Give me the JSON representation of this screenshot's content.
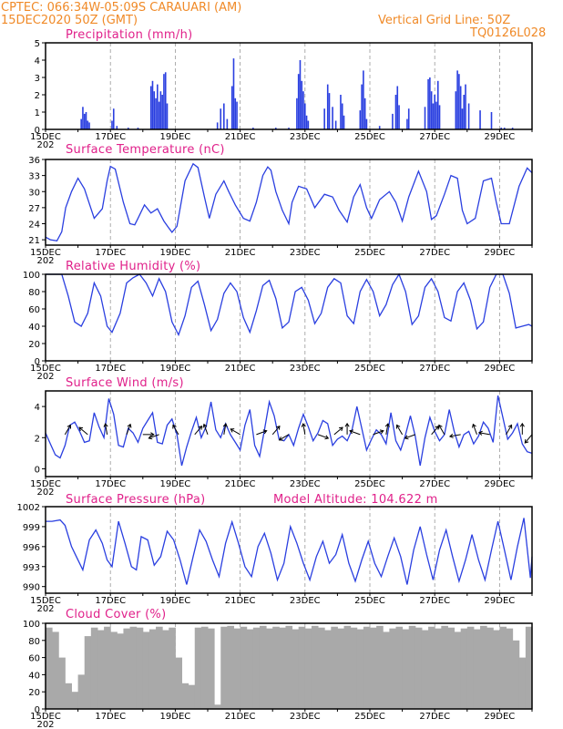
{
  "header": {
    "line1": "CPTEC:   066:34W-05:09S   CARAUARI (AM)",
    "line2": "15DEC2020 50Z (GMT)",
    "grid_note": "Vertical Grid Line: 50Z",
    "code": "TQ0126L028"
  },
  "colors": {
    "header": "#f08a28",
    "panel_title": "#e0208a",
    "series": "#2a3fe0",
    "arrow": "#000000",
    "cloud": "#a9a9a9"
  },
  "x_axis": {
    "labels": [
      "15DEC",
      "17DEC",
      "19DEC",
      "21DEC",
      "23DEC",
      "25DEC",
      "27DEC",
      "29DEC"
    ],
    "year_fragment": "202",
    "day_range": [
      0,
      15
    ],
    "grid_days": [
      2,
      4,
      6,
      8,
      10,
      12,
      14
    ]
  },
  "chart_data": [
    {
      "type": "bar",
      "title": "Precipitation (mm/h)",
      "ylim": [
        0,
        5
      ],
      "yticks": [
        "0",
        "1",
        "2",
        "3",
        "4",
        "5"
      ],
      "x_unit": "days since 15DEC",
      "bars": [
        [
          1.1,
          0.6
        ],
        [
          1.15,
          1.3
        ],
        [
          1.2,
          0.9
        ],
        [
          1.25,
          1.0
        ],
        [
          1.3,
          0.5
        ],
        [
          1.35,
          0.4
        ],
        [
          2.05,
          0.5
        ],
        [
          2.1,
          1.2
        ],
        [
          2.2,
          0.2
        ],
        [
          2.55,
          0.1
        ],
        [
          2.85,
          0.1
        ],
        [
          3.25,
          2.5
        ],
        [
          3.3,
          2.8
        ],
        [
          3.35,
          2.2
        ],
        [
          3.4,
          1.8
        ],
        [
          3.45,
          2.6
        ],
        [
          3.5,
          1.6
        ],
        [
          3.55,
          2.2
        ],
        [
          3.6,
          2.0
        ],
        [
          3.65,
          3.2
        ],
        [
          3.7,
          3.3
        ],
        [
          3.75,
          1.5
        ],
        [
          5.3,
          0.4
        ],
        [
          5.4,
          1.2
        ],
        [
          5.5,
          1.5
        ],
        [
          5.6,
          0.6
        ],
        [
          5.75,
          2.5
        ],
        [
          5.8,
          4.1
        ],
        [
          5.85,
          1.8
        ],
        [
          5.9,
          1.6
        ],
        [
          6.4,
          0.1
        ],
        [
          7.1,
          0.1
        ],
        [
          7.5,
          0.1
        ],
        [
          7.75,
          1.8
        ],
        [
          7.8,
          3.2
        ],
        [
          7.85,
          4.0
        ],
        [
          7.9,
          2.8
        ],
        [
          7.95,
          2.2
        ],
        [
          8.0,
          1.5
        ],
        [
          8.05,
          0.8
        ],
        [
          8.1,
          0.5
        ],
        [
          8.6,
          1.2
        ],
        [
          8.7,
          2.6
        ],
        [
          8.75,
          2.1
        ],
        [
          8.85,
          1.3
        ],
        [
          8.95,
          0.5
        ],
        [
          9.1,
          2.0
        ],
        [
          9.15,
          1.5
        ],
        [
          9.2,
          0.8
        ],
        [
          9.7,
          1.1
        ],
        [
          9.75,
          2.6
        ],
        [
          9.8,
          3.4
        ],
        [
          9.85,
          1.8
        ],
        [
          9.9,
          0.6
        ],
        [
          10.3,
          0.2
        ],
        [
          10.7,
          0.9
        ],
        [
          10.8,
          2.0
        ],
        [
          10.85,
          2.5
        ],
        [
          10.9,
          1.4
        ],
        [
          11.15,
          0.6
        ],
        [
          11.2,
          1.2
        ],
        [
          11.7,
          1.3
        ],
        [
          11.8,
          2.9
        ],
        [
          11.85,
          3.0
        ],
        [
          11.9,
          2.2
        ],
        [
          11.95,
          1.5
        ],
        [
          12.0,
          2.0
        ],
        [
          12.05,
          1.6
        ],
        [
          12.1,
          2.8
        ],
        [
          12.15,
          1.4
        ],
        [
          12.65,
          2.2
        ],
        [
          12.7,
          3.4
        ],
        [
          12.75,
          3.2
        ],
        [
          12.8,
          2.5
        ],
        [
          12.85,
          1.2
        ],
        [
          12.9,
          2.0
        ],
        [
          12.95,
          2.6
        ],
        [
          13.05,
          1.5
        ],
        [
          13.4,
          1.1
        ],
        [
          13.75,
          1.0
        ],
        [
          14.05,
          0.1
        ],
        [
          14.15,
          0.1
        ],
        [
          14.4,
          0.1
        ]
      ]
    },
    {
      "type": "line",
      "title": "Surface Temperature (nC)",
      "ylim": [
        20,
        36
      ],
      "yticks": [
        "21",
        "24",
        "27",
        "30",
        "33",
        "36"
      ],
      "x_unit": "days since 15DEC",
      "x": [
        0,
        0.15,
        0.35,
        0.5,
        0.62,
        0.8,
        1.0,
        1.2,
        1.5,
        1.75,
        1.9,
        2.0,
        2.15,
        2.4,
        2.6,
        2.75,
        2.85,
        3.05,
        3.25,
        3.45,
        3.65,
        3.8,
        3.9,
        4.05,
        4.3,
        4.55,
        4.7,
        4.9,
        5.05,
        5.25,
        5.5,
        5.65,
        5.85,
        6.1,
        6.3,
        6.5,
        6.7,
        6.85,
        6.95,
        7.1,
        7.3,
        7.5,
        7.6,
        7.8,
        8.05,
        8.3,
        8.6,
        8.85,
        9.05,
        9.3,
        9.5,
        9.7,
        9.9,
        10.05,
        10.3,
        10.6,
        10.8,
        11.0,
        11.2,
        11.5,
        11.75,
        11.9,
        12.05,
        12.3,
        12.5,
        12.7,
        12.85,
        13.0,
        13.25,
        13.5,
        13.75,
        13.9,
        14.05,
        14.3,
        14.6,
        14.85,
        15.0
      ],
      "values": [
        21.5,
        21.0,
        20.8,
        22.5,
        27.0,
        30.0,
        32.5,
        30.5,
        25.0,
        26.8,
        32.0,
        34.7,
        34.2,
        28.0,
        24.0,
        23.8,
        25.0,
        27.5,
        26.0,
        26.8,
        24.5,
        23.2,
        22.4,
        23.5,
        32.0,
        35.2,
        34.5,
        29.0,
        25.0,
        29.5,
        32.0,
        30.0,
        27.5,
        25.0,
        24.5,
        28.0,
        33.0,
        34.6,
        34.0,
        30.0,
        26.5,
        24.0,
        28.0,
        31.0,
        30.5,
        27.0,
        29.5,
        29.0,
        26.5,
        24.3,
        29.0,
        31.3,
        27.0,
        25.0,
        28.5,
        30.0,
        28.0,
        24.5,
        29.0,
        33.8,
        30.0,
        24.8,
        25.5,
        29.5,
        33.0,
        32.5,
        26.5,
        24.0,
        25.0,
        32.0,
        32.5,
        28.0,
        24.0,
        24.0,
        31.0,
        34.4,
        33.5
      ]
    },
    {
      "type": "line",
      "title": "Relative Humidity (%)",
      "ylim": [
        0,
        100
      ],
      "yticks": [
        "0",
        "20",
        "40",
        "60",
        "80",
        "100"
      ],
      "x_unit": "days since 15DEC",
      "x": [
        0,
        0.2,
        0.5,
        0.7,
        0.9,
        1.1,
        1.3,
        1.5,
        1.7,
        1.9,
        2.05,
        2.3,
        2.5,
        2.7,
        2.9,
        3.1,
        3.3,
        3.5,
        3.7,
        3.9,
        4.1,
        4.3,
        4.5,
        4.7,
        4.9,
        5.1,
        5.3,
        5.5,
        5.7,
        5.9,
        6.1,
        6.3,
        6.5,
        6.7,
        6.9,
        7.1,
        7.3,
        7.5,
        7.7,
        7.9,
        8.1,
        8.3,
        8.5,
        8.7,
        8.9,
        9.1,
        9.3,
        9.5,
        9.7,
        9.9,
        10.1,
        10.3,
        10.5,
        10.7,
        10.9,
        11.1,
        11.3,
        11.5,
        11.7,
        11.9,
        12.1,
        12.3,
        12.5,
        12.7,
        12.9,
        13.1,
        13.3,
        13.5,
        13.7,
        13.9,
        14.1,
        14.3,
        14.5,
        14.7,
        14.9,
        15.0
      ],
      "values": [
        100,
        100,
        100,
        75,
        45,
        40,
        55,
        90,
        75,
        40,
        33,
        55,
        90,
        96,
        100,
        90,
        75,
        95,
        80,
        45,
        30,
        52,
        85,
        92,
        65,
        35,
        48,
        78,
        90,
        80,
        50,
        33,
        58,
        87,
        93,
        72,
        38,
        45,
        80,
        85,
        70,
        43,
        55,
        85,
        95,
        90,
        52,
        43,
        80,
        94,
        80,
        52,
        65,
        88,
        100,
        80,
        42,
        52,
        85,
        95,
        80,
        50,
        46,
        80,
        90,
        70,
        37,
        45,
        85,
        100,
        100,
        78,
        38,
        40,
        42,
        40
      ]
    },
    {
      "type": "line",
      "title": "Surface Wind (m/s)",
      "ylim": [
        -0.5,
        5
      ],
      "yticks": [
        "0",
        "2",
        "4"
      ],
      "x_unit": "days since 15DEC",
      "x": [
        0,
        0.15,
        0.3,
        0.45,
        0.6,
        0.75,
        0.9,
        1.05,
        1.2,
        1.35,
        1.5,
        1.65,
        1.8,
        1.95,
        2.1,
        2.25,
        2.4,
        2.55,
        2.7,
        2.85,
        3.0,
        3.15,
        3.3,
        3.45,
        3.6,
        3.75,
        3.9,
        4.05,
        4.2,
        4.35,
        4.5,
        4.65,
        4.8,
        4.95,
        5.1,
        5.25,
        5.4,
        5.55,
        5.7,
        5.85,
        6.0,
        6.15,
        6.3,
        6.45,
        6.6,
        6.75,
        6.9,
        7.05,
        7.2,
        7.35,
        7.5,
        7.65,
        7.8,
        7.95,
        8.1,
        8.25,
        8.4,
        8.55,
        8.7,
        8.85,
        9.0,
        9.15,
        9.3,
        9.45,
        9.6,
        9.75,
        9.9,
        10.05,
        10.2,
        10.35,
        10.5,
        10.65,
        10.8,
        10.95,
        11.1,
        11.25,
        11.4,
        11.55,
        11.7,
        11.85,
        12.0,
        12.15,
        12.3,
        12.45,
        12.6,
        12.75,
        12.9,
        13.05,
        13.2,
        13.35,
        13.5,
        13.65,
        13.8,
        13.95,
        14.1,
        14.25,
        14.4,
        14.55,
        14.7,
        14.85,
        15.0
      ],
      "values": [
        2.3,
        1.6,
        0.9,
        0.7,
        1.5,
        2.8,
        3.0,
        2.4,
        1.7,
        1.8,
        3.6,
        2.7,
        2.0,
        4.5,
        3.5,
        1.5,
        1.4,
        2.6,
        2.3,
        1.7,
        2.6,
        3.1,
        3.6,
        1.7,
        1.6,
        2.8,
        3.2,
        2.2,
        0.2,
        1.4,
        2.4,
        3.3,
        2.0,
        2.7,
        4.3,
        2.5,
        2.0,
        2.9,
        2.2,
        1.7,
        1.2,
        2.8,
        3.8,
        1.5,
        0.8,
        2.5,
        4.3,
        3.4,
        1.9,
        1.8,
        2.2,
        1.5,
        2.6,
        3.5,
        2.7,
        1.8,
        2.3,
        3.1,
        2.9,
        1.5,
        1.9,
        2.1,
        1.8,
        2.5,
        4.0,
        2.6,
        1.2,
        1.9,
        2.5,
        2.2,
        1.6,
        3.6,
        1.8,
        1.2,
        2.2,
        3.4,
        2.1,
        0.2,
        2.0,
        3.3,
        2.4,
        1.8,
        2.2,
        3.8,
        2.4,
        1.4,
        2.2,
        2.4,
        1.6,
        2.1,
        3.0,
        2.6,
        1.7,
        4.7,
        3.3,
        1.9,
        2.3,
        2.9,
        1.6,
        1.1,
        1.0
      ],
      "arrows_x": [
        0.6,
        1.3,
        1.9,
        2.5,
        3.0,
        3.5,
        4.1,
        4.6,
        5.0,
        5.5,
        6.0,
        6.5,
        7.0,
        7.5,
        8.0,
        8.4,
        8.9,
        9.3,
        9.7,
        10.1,
        10.5,
        11.0,
        11.4,
        11.9,
        12.3,
        12.8,
        13.3,
        13.7,
        14.2,
        14.7,
        15.0
      ],
      "arrows_angle_deg": [
        60,
        140,
        100,
        70,
        0,
        200,
        120,
        50,
        110,
        80,
        150,
        20,
        50,
        210,
        100,
        340,
        40,
        90,
        160,
        20,
        80,
        120,
        200,
        50,
        120,
        190,
        110,
        170,
        60,
        90,
        230
      ]
    },
    {
      "type": "line",
      "title": "Surface Pressure (hPa)",
      "annotation": "Model Altitude: 104.622  m",
      "ylim": [
        989,
        1002
      ],
      "yticks": [
        "990",
        "993",
        "996",
        "999",
        "1002"
      ],
      "x_unit": "days since 15DEC",
      "x": [
        0,
        0.2,
        0.45,
        0.6,
        0.8,
        0.95,
        1.15,
        1.35,
        1.55,
        1.75,
        1.9,
        2.05,
        2.25,
        2.45,
        2.65,
        2.8,
        2.95,
        3.15,
        3.35,
        3.55,
        3.75,
        3.95,
        4.15,
        4.35,
        4.55,
        4.75,
        4.95,
        5.15,
        5.35,
        5.55,
        5.75,
        5.95,
        6.15,
        6.35,
        6.55,
        6.75,
        6.95,
        7.15,
        7.35,
        7.55,
        7.75,
        7.95,
        8.15,
        8.35,
        8.55,
        8.75,
        8.95,
        9.15,
        9.35,
        9.55,
        9.75,
        9.95,
        10.15,
        10.35,
        10.55,
        10.75,
        10.95,
        11.15,
        11.35,
        11.55,
        11.75,
        11.95,
        12.15,
        12.35,
        12.55,
        12.75,
        12.95,
        13.15,
        13.35,
        13.55,
        13.75,
        13.95,
        14.15,
        14.35,
        14.55,
        14.75,
        14.95,
        15.0
      ],
      "values": [
        999.8,
        999.8,
        1000.0,
        999.2,
        996.0,
        994.5,
        992.5,
        997.0,
        998.5,
        996.5,
        994.0,
        993.0,
        999.8,
        996.5,
        993.0,
        992.5,
        997.5,
        997.0,
        993.2,
        994.5,
        998.3,
        997.0,
        994.0,
        990.3,
        994.5,
        998.5,
        996.8,
        994.0,
        991.5,
        996.5,
        999.7,
        996.5,
        993.0,
        991.5,
        996.0,
        998.0,
        995.0,
        991.0,
        993.5,
        999.0,
        996.5,
        993.5,
        991.0,
        994.5,
        996.8,
        993.5,
        994.8,
        997.8,
        993.5,
        990.8,
        994.0,
        996.8,
        993.5,
        991.5,
        994.5,
        997.3,
        994.5,
        990.3,
        995.5,
        999.0,
        994.8,
        991.0,
        995.5,
        998.5,
        994.5,
        990.8,
        994.0,
        997.8,
        994.0,
        991.0,
        995.5,
        999.8,
        995.5,
        991.0,
        996.0,
        1000.3,
        991.3,
        994.5
      ]
    },
    {
      "type": "bar",
      "title": "Cloud Cover (%)",
      "ylim": [
        0,
        100
      ],
      "yticks": [
        "0",
        "20",
        "40",
        "60",
        "80",
        "100"
      ],
      "x_unit": "days since 15DEC",
      "x": [
        0,
        0.2,
        0.4,
        0.6,
        0.8,
        1.0,
        1.2,
        1.4,
        1.6,
        1.8,
        2.0,
        2.2,
        2.4,
        2.6,
        2.8,
        3.0,
        3.2,
        3.4,
        3.6,
        3.8,
        4.0,
        4.2,
        4.4,
        4.6,
        4.8,
        5.0,
        5.2,
        5.4,
        5.6,
        5.8,
        6.0,
        6.2,
        6.4,
        6.6,
        6.8,
        7.0,
        7.2,
        7.4,
        7.6,
        7.8,
        8.0,
        8.2,
        8.4,
        8.6,
        8.8,
        9.0,
        9.2,
        9.4,
        9.6,
        9.8,
        10.0,
        10.2,
        10.4,
        10.6,
        10.8,
        11.0,
        11.2,
        11.4,
        11.6,
        11.8,
        12.0,
        12.2,
        12.4,
        12.6,
        12.8,
        13.0,
        13.2,
        13.4,
        13.6,
        13.8,
        14.0,
        14.2,
        14.4,
        14.6,
        14.8
      ],
      "values": [
        95,
        90,
        60,
        30,
        20,
        40,
        85,
        95,
        92,
        96,
        90,
        88,
        94,
        96,
        95,
        90,
        93,
        96,
        92,
        95,
        60,
        30,
        28,
        95,
        96,
        94,
        5,
        96,
        97,
        94,
        96,
        93,
        95,
        97,
        94,
        96,
        95,
        97,
        93,
        96,
        94,
        97,
        95,
        92,
        96,
        94,
        97,
        95,
        93,
        96,
        95,
        97,
        90,
        94,
        96,
        93,
        97,
        95,
        92,
        96,
        94,
        97,
        95,
        90,
        94,
        96,
        93,
        97,
        95,
        92,
        96,
        94,
        80,
        60,
        96
      ]
    }
  ]
}
